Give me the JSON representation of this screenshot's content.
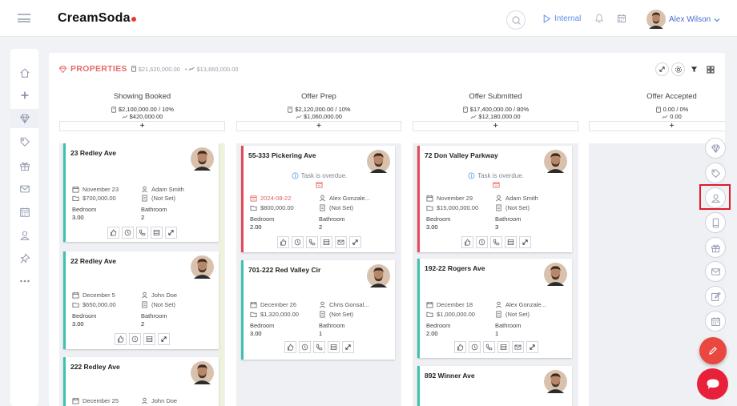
{
  "app": {
    "name": "CreamSoda"
  },
  "topbar": {
    "internal_label": "Internal",
    "user_name": "Alex Wilson"
  },
  "sidebar": {
    "items": [
      {
        "icon": "home-icon"
      },
      {
        "icon": "plus-icon"
      },
      {
        "icon": "diamond-icon",
        "active": true
      },
      {
        "icon": "tag-icon"
      },
      {
        "icon": "gift-icon"
      },
      {
        "icon": "mail-icon"
      },
      {
        "icon": "calendar-icon"
      },
      {
        "icon": "user-icon"
      },
      {
        "icon": "pin-icon"
      },
      {
        "icon": "more-icon"
      }
    ]
  },
  "page": {
    "title": "PROPERTIES",
    "total_value": "$21,620,000.00",
    "commission": "$13,660,000.00"
  },
  "columns": [
    {
      "name": "Showing Booked",
      "value": "$2,100,000.00 / 10%",
      "commission": "$420,000.00"
    },
    {
      "name": "Offer Prep",
      "value": "$2,120,000.00 / 10%",
      "commission": "$1,060,000.00"
    },
    {
      "name": "Offer Submitted",
      "value": "$17,400,000.00 / 80%",
      "commission": "$12,180,000.00"
    },
    {
      "name": "Offer Accepted",
      "value": "0.00 / 0%",
      "commission": "0.00"
    }
  ],
  "add_label": "+",
  "overdue_text": "Task is overdue.",
  "labels": {
    "bedroom": "Bedroom",
    "bathroom": "Bathroom"
  },
  "cards": [
    {
      "title": "23 Redley Ave",
      "date": "November 23",
      "agent": "Adam Smith",
      "price": "$700,000.00",
      "parking": "(Not Set)",
      "bedroom": "3.00",
      "bathroom": "2"
    },
    {
      "title": "22 Redley Ave",
      "date": "December 5",
      "agent": "John Doe",
      "price": "$650,000.00",
      "parking": "(Not Set)",
      "bedroom": "3.00",
      "bathroom": "2"
    },
    {
      "title": "222 Redley Ave",
      "date": "December 25",
      "agent": "John Doe"
    },
    {
      "title": "55-333 Pickering Ave",
      "date": "2024-08-22",
      "agent": "Alex Gonzale...",
      "price": "$800,000.00",
      "parking": "(Not Set)",
      "bedroom": "2.00",
      "bathroom": "2"
    },
    {
      "title": "701-222 Red Valley Cir",
      "date": "December 26",
      "agent": "Chris Gonsal...",
      "price": "$1,320,000.00",
      "parking": "(Not Set)",
      "bedroom": "3.00",
      "bathroom": "1"
    },
    {
      "title": "72 Don Valley Parkway",
      "date": "November 29",
      "agent": "Adam Smith",
      "price": "$15,000,000.00",
      "parking": "(Not Set)",
      "bedroom": "3.00",
      "bathroom": "3"
    },
    {
      "title": "192-22 Rogers Ave",
      "date": "December 18",
      "agent": "Alex Gonzale...",
      "price": "$1,000,000.00",
      "parking": "(Not Set)",
      "bedroom": "2.00",
      "bathroom": "1"
    },
    {
      "title": "892 Winner Ave"
    }
  ],
  "right_rail": [
    "diamond-icon",
    "tag-icon",
    "user-icon",
    "phone-icon",
    "gift-icon",
    "mail-icon",
    "edit-icon",
    "calendar-icon"
  ],
  "colors": {
    "accent": "#e46a6a",
    "teal": "#3ec1b0",
    "red": "#e04a5a",
    "link": "#4a6fd0",
    "fab": "#e9473f",
    "chat": "#e8203a"
  }
}
